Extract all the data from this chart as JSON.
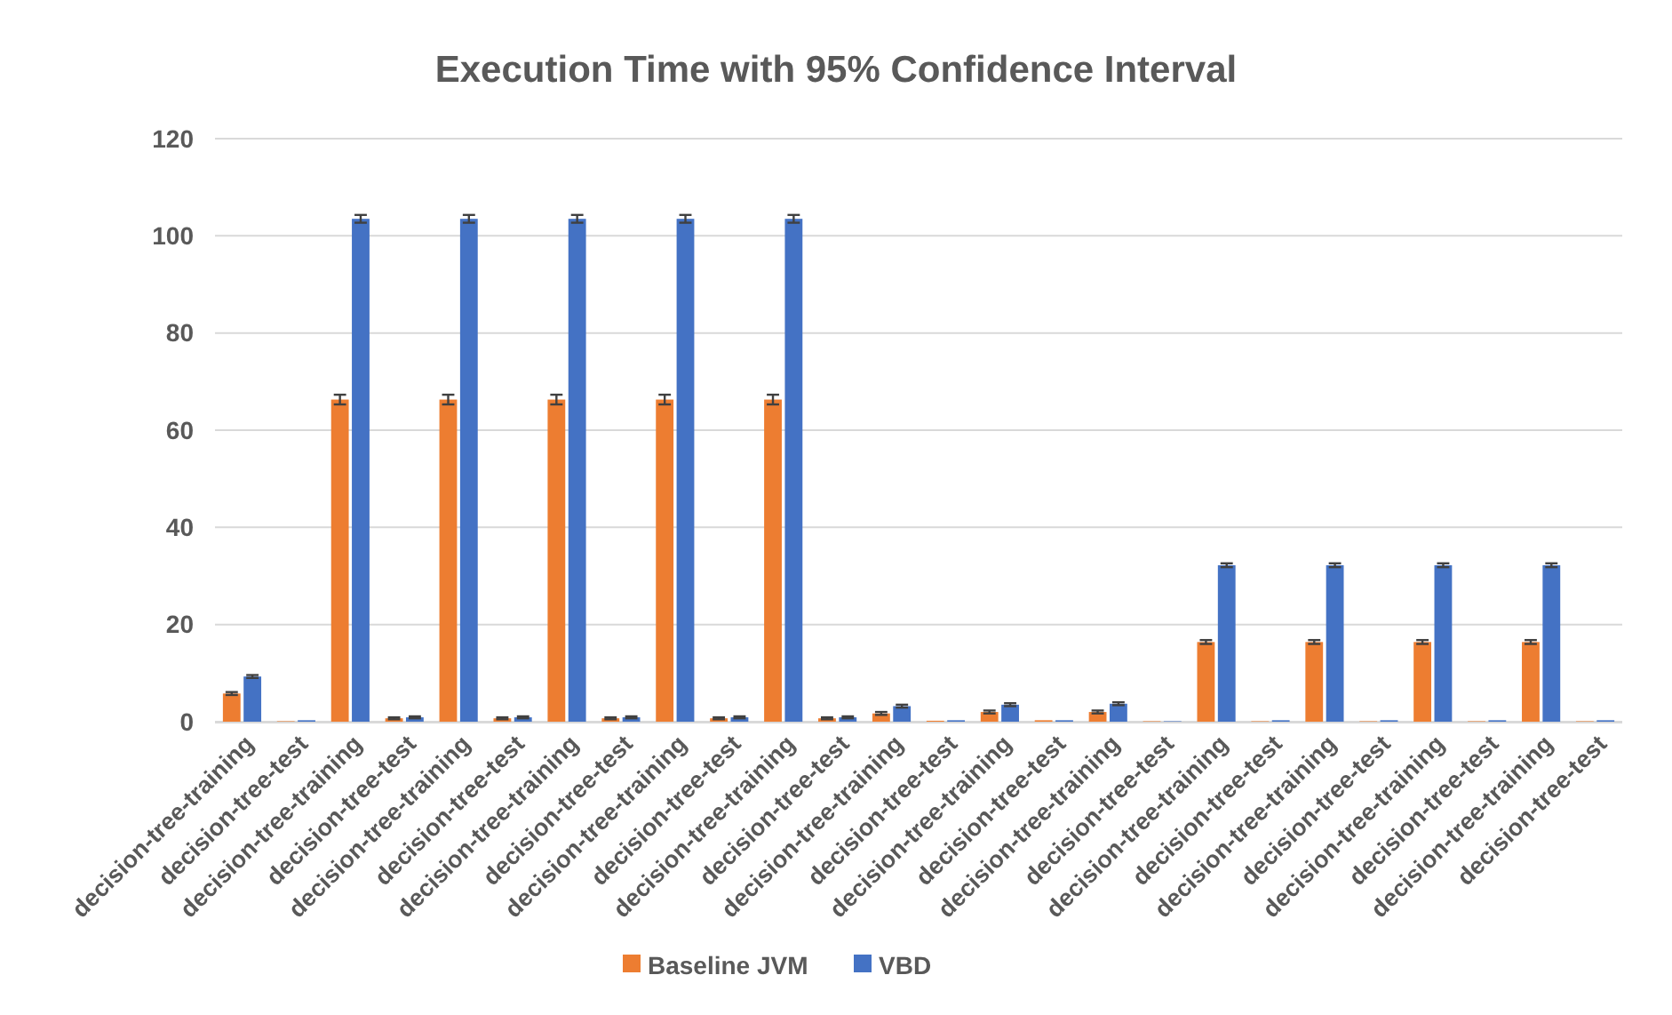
{
  "chart_data": {
    "type": "bar",
    "title": "Execution Time with 95% Confidence Interval",
    "categories": [
      "decision-tree-training",
      "decision-tree-test",
      "decision-tree-training",
      "decision-tree-test",
      "decision-tree-training",
      "decision-tree-test",
      "decision-tree-training",
      "decision-tree-test",
      "decision-tree-training",
      "decision-tree-test",
      "decision-tree-training",
      "decision-tree-test",
      "decision-tree-training",
      "decision-tree-test",
      "decision-tree-training",
      "decision-tree-test",
      "decision-tree-training",
      "decision-tree-test",
      "decision-tree-training",
      "decision-tree-test",
      "decision-tree-training",
      "decision-tree-test",
      "decision-tree-training",
      "decision-tree-test",
      "decision-tree-training",
      "decision-tree-test"
    ],
    "series": [
      {
        "name": "Baseline JVM",
        "color": "#ed7d31",
        "values": [
          5.8,
          0.1,
          66.3,
          0.7,
          66.3,
          0.7,
          66.3,
          0.7,
          66.3,
          0.7,
          66.3,
          0.7,
          1.7,
          0.2,
          2,
          0.3,
          2,
          0.1,
          16.4,
          0.1,
          16.4,
          0.1,
          16.4,
          0.1,
          16.4,
          0.1
        ],
        "errors": [
          0.3,
          null,
          1,
          0.2,
          1,
          0.2,
          1,
          0.2,
          1,
          0.2,
          1,
          0.2,
          0.3,
          null,
          0.3,
          null,
          0.3,
          null,
          0.4,
          null,
          0.4,
          null,
          0.4,
          null,
          0.4,
          null
        ]
      },
      {
        "name": "VBD",
        "color": "#4472c4",
        "values": [
          9.3,
          0.3,
          103.5,
          0.9,
          103.5,
          0.9,
          103.5,
          0.9,
          103.5,
          0.9,
          103.5,
          0.9,
          3.2,
          0.3,
          3.5,
          0.3,
          3.7,
          0.1,
          32.2,
          0.3,
          32.2,
          0.3,
          32.2,
          0.3,
          32.2,
          0.3
        ],
        "errors": [
          0.3,
          null,
          0.8,
          0.2,
          0.8,
          0.2,
          0.8,
          0.2,
          0.8,
          0.2,
          0.8,
          0.2,
          0.3,
          null,
          0.3,
          null,
          0.3,
          null,
          0.4,
          null,
          0.4,
          null,
          0.4,
          null,
          0.4,
          null
        ]
      }
    ],
    "ylim": [
      0,
      120
    ],
    "yticks": [
      0,
      20,
      40,
      60,
      80,
      100,
      120
    ],
    "grid": "y",
    "legend": "bottom"
  }
}
